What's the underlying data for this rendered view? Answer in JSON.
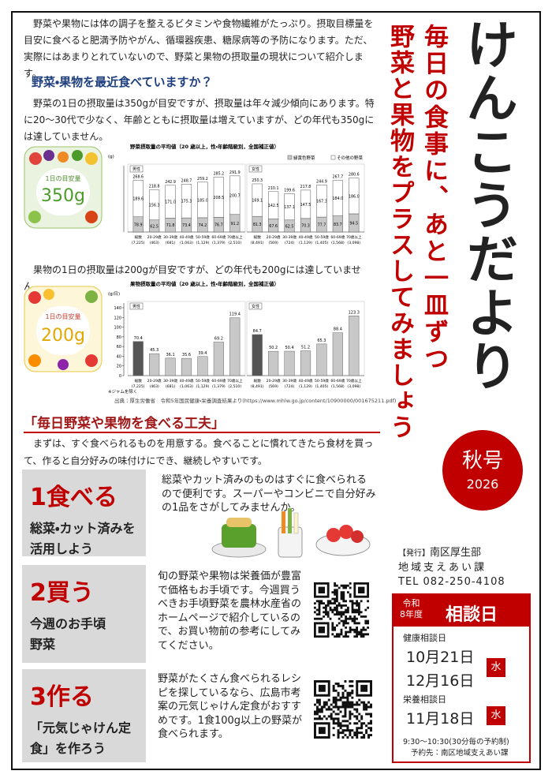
{
  "intro": "野菜や果物には体の調子を整えるビタミンや食物繊維がたっぷり。摂取目標量を目安に食べると肥満予防やがん、循環器疾患、糖尿病等の予防になります。ただ、実際にはあまりとれていないので、野菜と果物の摂取量の現状について紹介します。",
  "question_heading": "野菜・果物を最近食べていますか？",
  "veg_text": "野菜の1日の摂取量は350gが目安ですが、摂取量は年々減少傾向にあります。特に20～30代で少なく、年齢とともに摂取量は増えていますが、どの年代も350gには達していません。",
  "veg_badge": {
    "label": "1日の目安量",
    "amount": "350g"
  },
  "veg_chart": {
    "type": "bar",
    "stacked": true,
    "title": "野菜摂取量の平均値（20 歳以上，性・年齢階級別，全国補正値）",
    "y_unit": "(g)",
    "ylim": [
      0,
      320
    ],
    "categories": [
      "総数",
      "20-29歳",
      "30-39歳",
      "40-49歳",
      "50-59歳",
      "60-69歳",
      "70歳以上"
    ],
    "series": [
      {
        "name": "緑黄色野菜",
        "color": "#c8c8c8"
      },
      {
        "name": "その他の野菜",
        "color": "#ffffff"
      }
    ],
    "panels": [
      {
        "name": "男性",
        "n": [
          "(7,225)",
          "(463)",
          "(681)",
          "(1,063)",
          "(1,129)",
          "(1,379)",
          "(2,510)"
        ],
        "values": [
          [
            78.9,
            62.5,
            71.8,
            73.4,
            74.2,
            76.7,
            91.2
          ],
          [
            189.6,
            156.3,
            171.0,
            175.3,
            185.0,
            208.5,
            200.7
          ]
        ],
        "value_labels": [
          [
            "78.9",
            "62.5",
            "71.8",
            "73.4",
            "74.2",
            "76.7",
            "91.2"
          ],
          [
            "189.6",
            "156.3",
            "171.0",
            "175.3",
            "185.0",
            "208.5",
            "200.7"
          ]
        ],
        "totals": [
          "268.6",
          "218.8",
          "242.9",
          "248.7",
          "259.2",
          "285.2",
          "291.9"
        ]
      },
      {
        "name": "女性",
        "n": [
          "(8,491)",
          "(569)",
          "(724)",
          "(1,129)",
          "(1,405)",
          "(1,568)",
          "(3,098)"
        ],
        "values": [
          [
            81.3,
            67.6,
            62.5,
            70.3,
            77.7,
            83.7,
            94.5
          ],
          [
            169.1,
            142.5,
            137.1,
            147.5,
            167.3,
            184.0,
            186.0
          ]
        ],
        "value_labels": [
          [
            "81.3",
            "67.6",
            "62.5",
            "70.3",
            "77.7",
            "83.7",
            "94.5"
          ],
          [
            "169.1",
            "142.5",
            "137.1",
            "147.5",
            "167.3",
            "184.0",
            "186.0"
          ]
        ],
        "totals": [
          "250.3",
          "210.1",
          "199.6",
          "217.8",
          "244.9",
          "267.7",
          "280.6"
        ]
      }
    ]
  },
  "fruit_text": "果物の1日の摂取量は200gが目安ですが、どの年代も200gには達していません。",
  "fruit_badge": {
    "label": "1日の目安量",
    "amount": "200g"
  },
  "fruit_chart": {
    "type": "bar",
    "stacked": false,
    "title": "果物摂取量の平均値（20 歳以上，性・年齢階級別，全国補正値）",
    "y_unit": "(g/日)",
    "ylim": [
      0,
      140
    ],
    "yticks": [
      0,
      20,
      40,
      60,
      80,
      100,
      120,
      140
    ],
    "color": "#c8c8c8",
    "highlight_color": "#555555",
    "categories": [
      "総数",
      "20-29歳",
      "30-39歳",
      "40-49歳",
      "50-59歳",
      "60-69歳",
      "70歳以上"
    ],
    "note": "※ジャムを除く",
    "panels": [
      {
        "name": "男性",
        "n": [
          "(7,225)",
          "(463)",
          "(681)",
          "(1,063)",
          "(1,129)",
          "(1,379)",
          "(2,510)"
        ],
        "values": [
          70.4,
          45.3,
          36.1,
          35.6,
          39.4,
          69.2,
          119.4
        ]
      },
      {
        "name": "女性",
        "n": [
          "(8,491)",
          "(569)",
          "(724)",
          "(1,129)",
          "(1,405)",
          "(1,568)",
          "(3,098)"
        ],
        "values": [
          84.7,
          50.2,
          50.4,
          51.2,
          65.3,
          88.4,
          123.3
        ]
      }
    ]
  },
  "source": "出典：厚生労働省　令和5年国民健康・栄養調査結果より(https://www.mhlw.go.jp/content/10900000/001675211.pdf)",
  "tips_heading": "「毎日野菜や果物を食べる工夫」",
  "tips_intro": "まずは、すぐ食べられるものを用意する。食べることに慣れてきたら食材を買って、作ると自分好みの味付けにでき、継続しやすいです。",
  "tips": [
    {
      "number": "1",
      "verb": "食べる",
      "sub": "総菜・カット済みを活用しよう",
      "text": "総菜やカット済みのものはすぐに食べられるので便利です。スーパーやコンビニで自分好みの1品をさがしてみませんか。"
    },
    {
      "number": "2",
      "verb": "買う",
      "sub": "今週のお手頃野菜",
      "text": "旬の野菜や果物は栄養価が豊富で価格もお手頃です。今週買うべきお手頃野菜を農林水産省のホームページで紹介しているので、お買い物前の参考にしてみてください。"
    },
    {
      "number": "3",
      "verb": "作る",
      "sub": "「元気じゃけん定食」を作ろう",
      "text": "野菜がたくさん食べられるレシピを探しているなら、広島市考案の元気じゃけん定食がおすすめです。1食100g以上の野菜が食べられます。"
    }
  ],
  "title": "けんこうだより",
  "catch": [
    "毎日の食事に、あと一皿ずつ",
    "野菜と果物をプラスしてみましょう"
  ],
  "issue": {
    "season": "秋号",
    "year": 2026
  },
  "issuer": {
    "label": "【発行】",
    "dept": "南区厚生部",
    "section": "地域支えあい課",
    "tel": "TEL 082-250-4108"
  },
  "consult": {
    "era": "令和",
    "year": "8年度",
    "title": "相談日",
    "sections": [
      {
        "name": "健康相談日",
        "dates": [
          "10月21日",
          "12月16日"
        ],
        "day": "水"
      },
      {
        "name": "栄養相談日",
        "dates": [
          "11月18日"
        ],
        "day": "水"
      }
    ],
    "time": "9:30～10:30(30分毎の予約制)",
    "contact": "予約先：南区地域支えあい課"
  }
}
